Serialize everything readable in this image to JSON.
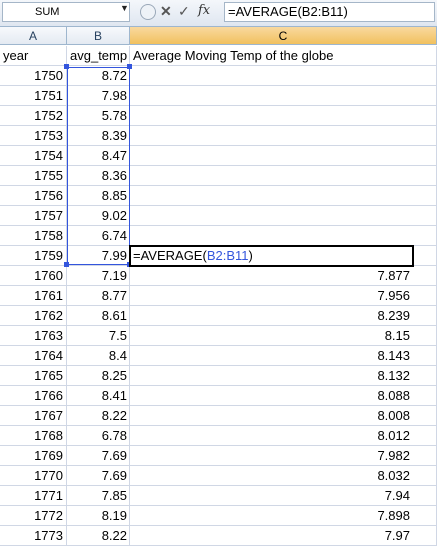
{
  "formula_bar": {
    "name_box": "SUM",
    "formula": "=AVERAGE(B2:B11)",
    "icons": [
      "cancel-icon",
      "enter-icon",
      "insert-function-icon"
    ]
  },
  "columns": [
    "A",
    "B",
    "C"
  ],
  "selected_column": "C",
  "active_cell_text": {
    "prefix": "=AVERAGE(",
    "ref": "B2:B11",
    "suffix": ")"
  },
  "rows": [
    {
      "a": "year",
      "b": "avg_temp",
      "c": "Average Moving Temp of the globe"
    },
    {
      "a": "1750",
      "b": "8.72",
      "c": ""
    },
    {
      "a": "1751",
      "b": "7.98",
      "c": ""
    },
    {
      "a": "1752",
      "b": "5.78",
      "c": ""
    },
    {
      "a": "1753",
      "b": "8.39",
      "c": ""
    },
    {
      "a": "1754",
      "b": "8.47",
      "c": ""
    },
    {
      "a": "1755",
      "b": "8.36",
      "c": ""
    },
    {
      "a": "1756",
      "b": "8.85",
      "c": ""
    },
    {
      "a": "1757",
      "b": "9.02",
      "c": ""
    },
    {
      "a": "1758",
      "b": "6.74",
      "c": ""
    },
    {
      "a": "1759",
      "b": "7.99",
      "c": ""
    },
    {
      "a": "1760",
      "b": "7.19",
      "c": "7.877"
    },
    {
      "a": "1761",
      "b": "8.77",
      "c": "7.956"
    },
    {
      "a": "1762",
      "b": "8.61",
      "c": "8.239"
    },
    {
      "a": "1763",
      "b": "7.5",
      "c": "8.15"
    },
    {
      "a": "1764",
      "b": "8.4",
      "c": "8.143"
    },
    {
      "a": "1765",
      "b": "8.25",
      "c": "8.132"
    },
    {
      "a": "1766",
      "b": "8.41",
      "c": "8.088"
    },
    {
      "a": "1767",
      "b": "8.22",
      "c": "8.008"
    },
    {
      "a": "1768",
      "b": "6.78",
      "c": "8.012"
    },
    {
      "a": "1769",
      "b": "7.69",
      "c": "7.982"
    },
    {
      "a": "1770",
      "b": "7.69",
      "c": "8.032"
    },
    {
      "a": "1771",
      "b": "7.85",
      "c": "7.94"
    },
    {
      "a": "1772",
      "b": "8.19",
      "c": "7.898"
    },
    {
      "a": "1773",
      "b": "8.22",
      "c": "7.97"
    }
  ]
}
